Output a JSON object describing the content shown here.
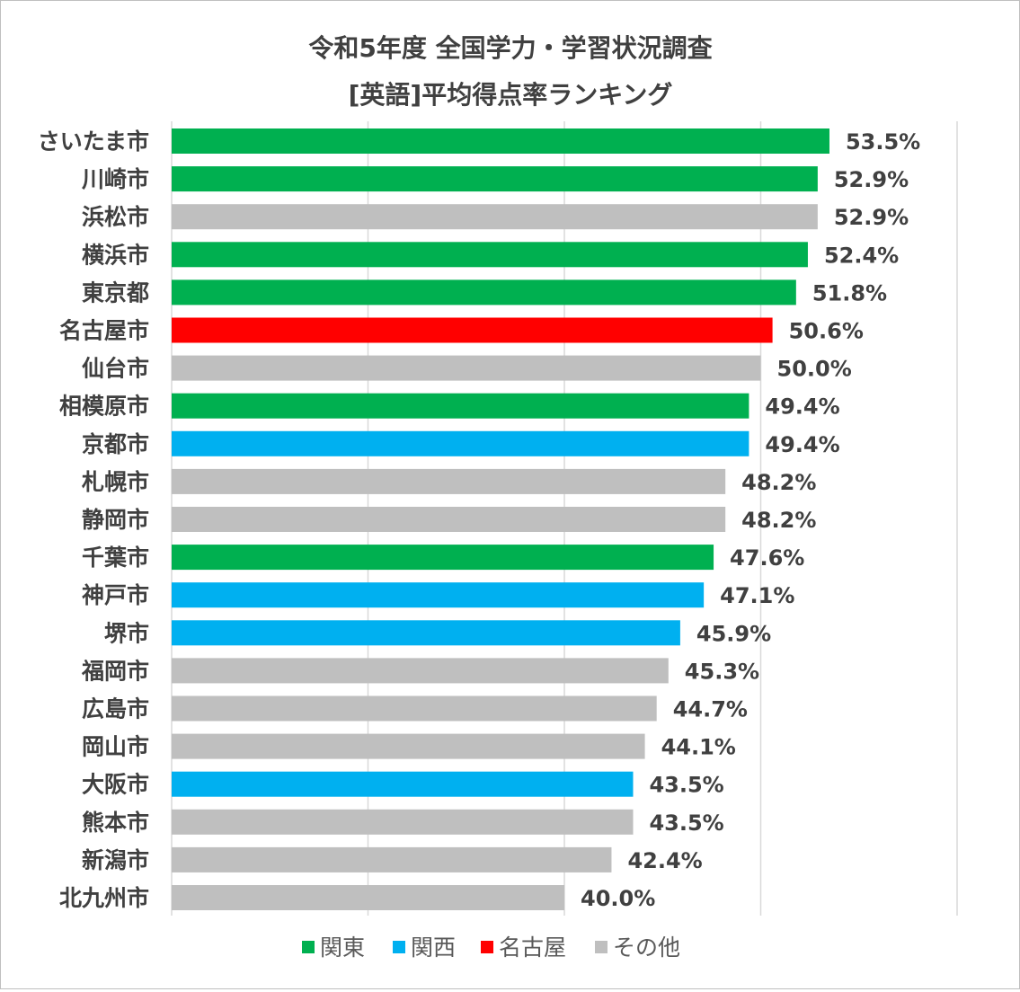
{
  "chart_data": {
    "type": "bar",
    "orientation": "horizontal",
    "title": "令和5年度 全国学力・学習状況調査",
    "subtitle": "[英語]平均得点率ランキング",
    "xlabel": "",
    "ylabel": "",
    "xlim": [
      20,
      60
    ],
    "grid": true,
    "legend_position": "bottom",
    "categories": [
      "さいたま市",
      "川崎市",
      "浜松市",
      "横浜市",
      "東京都",
      "名古屋市",
      "仙台市",
      "相模原市",
      "京都市",
      "札幌市",
      "静岡市",
      "千葉市",
      "神戸市",
      "堺市",
      "福岡市",
      "広島市",
      "岡山市",
      "大阪市",
      "熊本市",
      "新潟市",
      "北九州市"
    ],
    "values": [
      53.5,
      52.9,
      52.9,
      52.4,
      51.8,
      50.6,
      50.0,
      49.4,
      49.4,
      48.2,
      48.2,
      47.6,
      47.1,
      45.9,
      45.3,
      44.7,
      44.1,
      43.5,
      43.5,
      42.4,
      40.0
    ],
    "value_labels": [
      "53.5%",
      "52.9%",
      "52.9%",
      "52.4%",
      "51.8%",
      "50.6%",
      "50.0%",
      "49.4%",
      "49.4%",
      "48.2%",
      "48.2%",
      "47.6%",
      "47.1%",
      "45.9%",
      "45.3%",
      "44.7%",
      "44.1%",
      "43.5%",
      "43.5%",
      "42.4%",
      "40.0%"
    ],
    "groups": [
      "関東",
      "関東",
      "その他",
      "関東",
      "関東",
      "名古屋",
      "その他",
      "関東",
      "関西",
      "その他",
      "その他",
      "関東",
      "関西",
      "関西",
      "その他",
      "その他",
      "その他",
      "関西",
      "その他",
      "その他",
      "その他"
    ],
    "legend": [
      {
        "name": "関東",
        "color": "#00b050"
      },
      {
        "name": "関西",
        "color": "#00b0f0"
      },
      {
        "name": "名古屋",
        "color": "#ff0000"
      },
      {
        "name": "その他",
        "color": "#bfbfbf"
      }
    ],
    "gridline_color": "#d9d9d9",
    "text_color": "#404040"
  }
}
